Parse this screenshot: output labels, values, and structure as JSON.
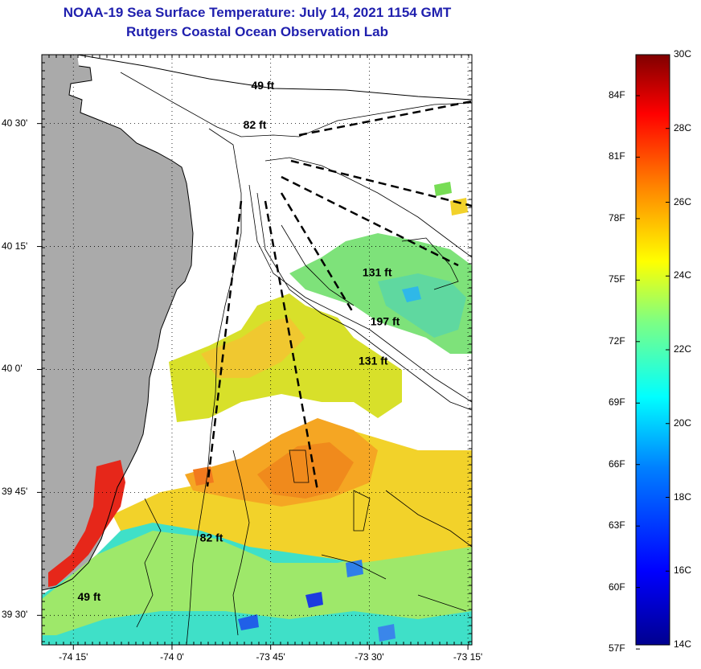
{
  "title": {
    "line1": "NOAA-19 Sea Surface Temperature:  July 14, 2021 1154 GMT",
    "line2": "Rutgers Coastal Ocean Observation Lab"
  },
  "map": {
    "lat_ticks": [
      {
        "label": "40 30'",
        "value": 40.5
      },
      {
        "label": "40 15'",
        "value": 40.25
      },
      {
        "label": "40 0'",
        "value": 40.0
      },
      {
        "label": "39 45'",
        "value": 39.75
      },
      {
        "label": "39 30'",
        "value": 39.5
      }
    ],
    "lon_ticks": [
      {
        "label": "-74 15'",
        "value": -74.25
      },
      {
        "label": "-74 0'",
        "value": -74.0
      },
      {
        "label": "-73 45'",
        "value": -73.75
      },
      {
        "label": "-73 30'",
        "value": -73.5
      },
      {
        "label": "-73 15'",
        "value": -73.25
      }
    ],
    "lon_range": [
      -74.33,
      -73.24
    ],
    "lat_range": [
      39.44,
      40.64
    ],
    "land_color": "#aaaaaa",
    "cloud_color": "#ffffff",
    "depth_labels": [
      {
        "text": "49 ft",
        "lon": -73.77,
        "lat": 40.57
      },
      {
        "text": "82 ft",
        "lon": -73.79,
        "lat": 40.49
      },
      {
        "text": "131 ft",
        "lon": -73.48,
        "lat": 40.19
      },
      {
        "text": "197 ft",
        "lon": -73.46,
        "lat": 40.09
      },
      {
        "text": "131 ft",
        "lon": -73.49,
        "lat": 40.01
      },
      {
        "text": "82 ft",
        "lon": -73.9,
        "lat": 39.65
      },
      {
        "text": "49 ft",
        "lon": -74.21,
        "lat": 39.53
      }
    ]
  },
  "colorbar": {
    "celsius_ticks": [
      {
        "label": "30C",
        "value": 30
      },
      {
        "label": "28C",
        "value": 28
      },
      {
        "label": "26C",
        "value": 26
      },
      {
        "label": "24C",
        "value": 24
      },
      {
        "label": "22C",
        "value": 22
      },
      {
        "label": "20C",
        "value": 20
      },
      {
        "label": "18C",
        "value": 18
      },
      {
        "label": "16C",
        "value": 16
      },
      {
        "label": "14C",
        "value": 14
      }
    ],
    "fahrenheit_ticks": [
      {
        "label": "84F",
        "value": 84
      },
      {
        "label": "81F",
        "value": 81
      },
      {
        "label": "78F",
        "value": 78
      },
      {
        "label": "75F",
        "value": 75
      },
      {
        "label": "72F",
        "value": 72
      },
      {
        "label": "69F",
        "value": 69
      },
      {
        "label": "66F",
        "value": 66
      },
      {
        "label": "63F",
        "value": 63
      },
      {
        "label": "60F",
        "value": 60
      },
      {
        "label": "57F",
        "value": 57
      }
    ],
    "range_c": [
      14,
      30
    ],
    "colors": [
      "#00008f",
      "#0000ff",
      "#0080ff",
      "#00ffff",
      "#80ff80",
      "#ffff00",
      "#ff8000",
      "#ff0000",
      "#800000"
    ]
  }
}
